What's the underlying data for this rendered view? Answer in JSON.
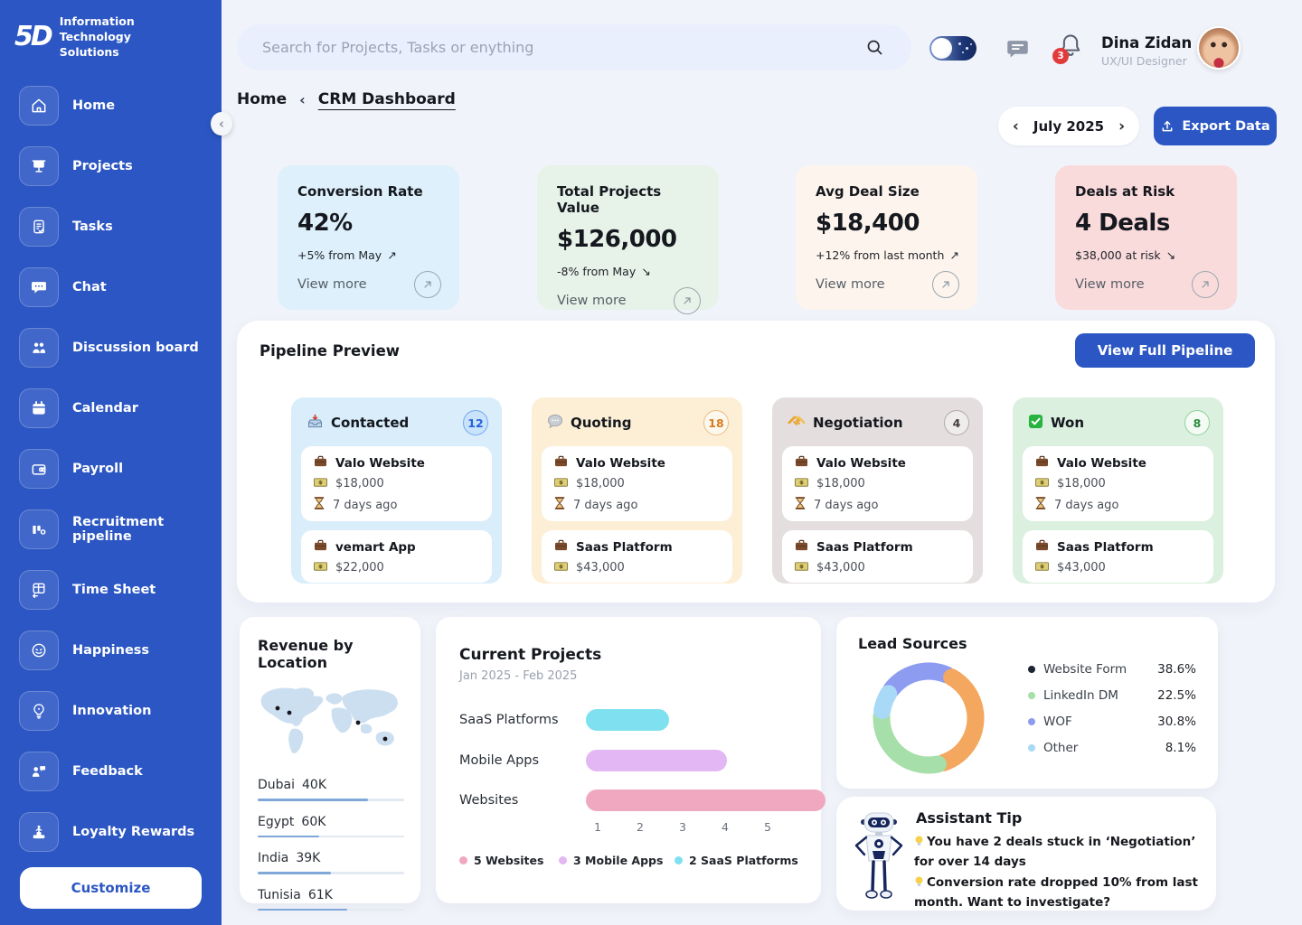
{
  "theme": {
    "brand_blue": "#2b56c3",
    "page_bg": "#f1f3fa"
  },
  "brand": {
    "logo_text": "5D",
    "name_line1": "Information Technology",
    "name_line2": "Solutions"
  },
  "sidebar": {
    "collapse_glyph": "‹",
    "items": [
      {
        "label": "Home"
      },
      {
        "label": "Projects"
      },
      {
        "label": "Tasks"
      },
      {
        "label": "Chat"
      },
      {
        "label": "Discussion board"
      },
      {
        "label": "Calendar"
      },
      {
        "label": "Payroll"
      },
      {
        "label": "Recruitment pipeline"
      },
      {
        "label": "Time Sheet"
      },
      {
        "label": "Happiness"
      },
      {
        "label": "Innovation"
      },
      {
        "label": "Feedback"
      },
      {
        "label": "Loyalty Rewards"
      }
    ],
    "customize_label": "Customize"
  },
  "topbar": {
    "search_placeholder": "Search for Projects, Tasks or enything",
    "notification_count": "3",
    "user": {
      "name": "Dina Zidan",
      "role": "UX/UI Designer"
    }
  },
  "breadcrumb": {
    "home": "Home",
    "separator": "‹",
    "current": "CRM Dashboard"
  },
  "header_controls": {
    "prev_glyph": "‹",
    "month_label": "July 2025",
    "next_glyph": "›",
    "export_label": "Export Data"
  },
  "stat_cards": [
    {
      "title": "Conversion Rate",
      "value": "42%",
      "delta": "+5% from May",
      "trend": "↗",
      "view_more": "View more",
      "bg": "#def0fb"
    },
    {
      "title": "Total Projects Value",
      "value": "$126,000",
      "delta": "-8% from May",
      "trend": "↘",
      "view_more": "View more",
      "bg": "#e7f2e8"
    },
    {
      "title": "Avg Deal Size",
      "value": "$18,400",
      "delta": "+12% from last month",
      "trend": "↗",
      "view_more": "View more",
      "bg": "#fdf4ed"
    },
    {
      "title": "Deals at Risk",
      "value": "4 Deals",
      "delta": "$38,000 at risk",
      "trend": "↘",
      "view_more": "View more",
      "bg": "#fadbdc"
    }
  ],
  "pipeline": {
    "title": "Pipeline Preview",
    "button_label": "View Full Pipeline",
    "columns": [
      {
        "name": "Contacted",
        "count": "12",
        "bg": "#d9edfb",
        "badge_bg": "#c9e3fa",
        "badge_border": "#74a7f2",
        "badge_text": "#2563d8",
        "deals": [
          {
            "name": "Valo Website",
            "amount": "$18,000",
            "age": "7 days ago"
          },
          {
            "name": "vemart App",
            "amount": "$22,000"
          }
        ]
      },
      {
        "name": "Quoting",
        "count": "18",
        "bg": "#fdeed6",
        "badge_bg": "#fdf8ee",
        "badge_border": "#ebbd82",
        "badge_text": "#d97b1f",
        "deals": [
          {
            "name": "Valo Website",
            "amount": "$18,000",
            "age": "7 days ago"
          },
          {
            "name": "Saas Platform",
            "amount": "$43,000"
          }
        ]
      },
      {
        "name": "Negotiation",
        "count": "4",
        "bg": "#e4dfde",
        "badge_bg": "#efecec",
        "badge_border": "#b2aaa8",
        "badge_text": "#453f3c",
        "deals": [
          {
            "name": "Valo Website",
            "amount": "$18,000",
            "age": "7 days ago"
          },
          {
            "name": "Saas Platform",
            "amount": "$43,000"
          }
        ]
      },
      {
        "name": "Won",
        "count": "8",
        "bg": "#dbf0df",
        "badge_bg": "#f4fbf5",
        "badge_border": "#8fd19b",
        "badge_text": "#2b8a3e",
        "deals": [
          {
            "name": "Valo Website",
            "amount": "$18,000",
            "age": "7 days ago"
          },
          {
            "name": "Saas Platform",
            "amount": "$43,000"
          }
        ]
      }
    ]
  },
  "revenue_by_location": {
    "title": "Revenue by Location",
    "locations": [
      {
        "name": "Dubai",
        "value": "40K",
        "fill_pct": 75
      },
      {
        "name": "Egypt",
        "value": "60K",
        "fill_pct": 42
      },
      {
        "name": "India",
        "value": "39K",
        "fill_pct": 50
      },
      {
        "name": "Tunisia",
        "value": "61K",
        "fill_pct": 61
      }
    ]
  },
  "current_projects": {
    "title": "Current Projects",
    "subtitle": "Jan 2025 - Feb 2025",
    "bars": [
      {
        "label": "SaaS Platforms",
        "value": 2,
        "units": 2.0,
        "color": "#7fe0f0"
      },
      {
        "label": "Mobile Apps",
        "value": 3,
        "units": 3.4,
        "color": "#e3b6f4"
      },
      {
        "label": "Websites",
        "value": 5,
        "units": 5.75,
        "color": "#f0a8c0"
      }
    ],
    "ticks": [
      "1",
      "2",
      "3",
      "4",
      "5"
    ],
    "legend": [
      {
        "label": "5 Websites",
        "color": "#f0a8c0"
      },
      {
        "label": "3 Mobile Apps",
        "color": "#e3b6f4"
      },
      {
        "label": "2 SaaS Platforms",
        "color": "#7fe0f0"
      }
    ]
  },
  "lead_sources": {
    "title": "Lead Sources",
    "legend": [
      {
        "label": "Website Form",
        "pct": "38.6%",
        "dot": "#1d2433"
      },
      {
        "label": "LinkedIn DM",
        "pct": "22.5%",
        "dot": "#a6dfa9"
      },
      {
        "label": "WOF",
        "pct": "30.8%",
        "dot": "#8d9cf1"
      },
      {
        "label": "Other",
        "pct": "8.1%",
        "dot": "#a8d9f7"
      }
    ],
    "donut_segments": [
      {
        "color": "#8d9cf1",
        "pct": 22.5
      },
      {
        "color": "#f4a75e",
        "pct": 38.6
      },
      {
        "color": "#a6dfa9",
        "pct": 30.8
      },
      {
        "color": "#a8d9f7",
        "pct": 8.1
      }
    ],
    "rotation_deg": -55
  },
  "assistant": {
    "title": "Assistant Tip",
    "tips": [
      "You have 2 deals stuck in ‘Negotiation’ for over 14 days",
      "Conversion rate dropped 10% from last month. Want to investigate?"
    ]
  },
  "chart_data": [
    {
      "type": "bar",
      "title": "Current Projects",
      "subtitle": "Jan 2025 - Feb 2025",
      "orientation": "horizontal",
      "categories": [
        "SaaS Platforms",
        "Mobile Apps",
        "Websites"
      ],
      "values": [
        2,
        3,
        5
      ],
      "xlim": [
        0,
        5
      ],
      "ticks": [
        1,
        2,
        3,
        4,
        5
      ],
      "legend": [
        "5 Websites",
        "3 Mobile Apps",
        "2 SaaS Platforms"
      ],
      "grid": false
    },
    {
      "type": "pie",
      "title": "Lead Sources",
      "donut": true,
      "categories": [
        "Website Form",
        "LinkedIn DM",
        "WOF",
        "Other"
      ],
      "values": [
        38.6,
        22.5,
        30.8,
        8.1
      ],
      "legend_position": "right"
    },
    {
      "type": "bar",
      "title": "Revenue by Location",
      "orientation": "horizontal",
      "categories": [
        "Dubai",
        "Egypt",
        "India",
        "Tunisia"
      ],
      "values": [
        40,
        60,
        39,
        61
      ],
      "unit": "K"
    }
  ]
}
